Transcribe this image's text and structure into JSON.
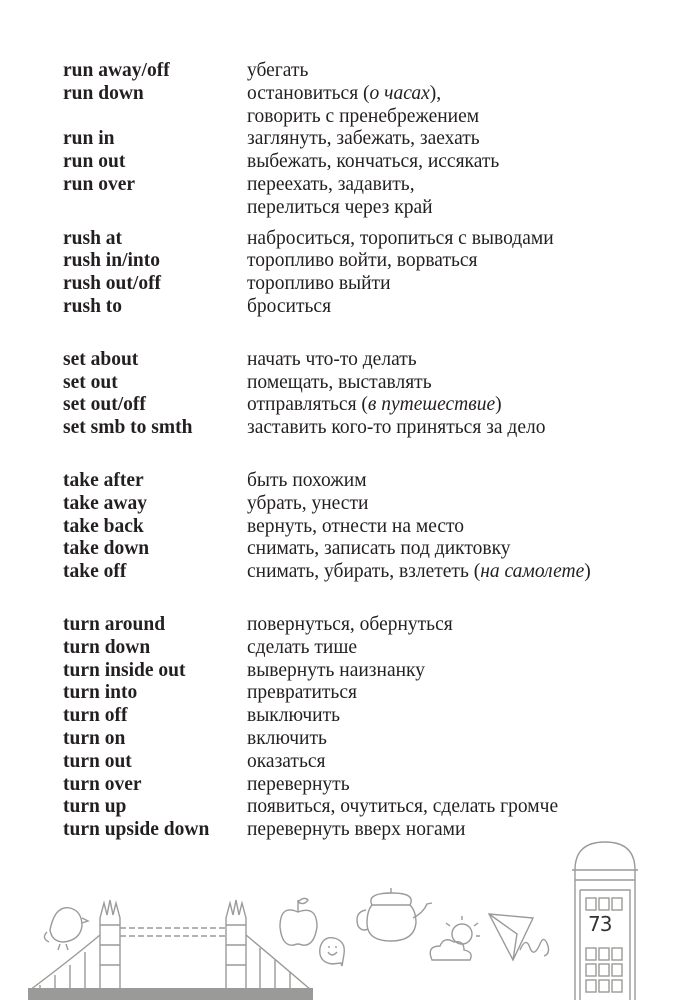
{
  "groups": [
    {
      "entries": [
        {
          "term": "run away/off",
          "lines": [
            [
              {
                "t": "убегать"
              }
            ]
          ]
        },
        {
          "term": "run down",
          "lines": [
            [
              {
                "t": "остановиться ("
              },
              {
                "t": "о часах",
                "i": true
              },
              {
                "t": "),"
              }
            ],
            [
              {
                "t": "говорить с пренебрежением"
              }
            ]
          ]
        },
        {
          "term": "run in",
          "lines": [
            [
              {
                "t": "заглянуть, забежать, заехать"
              }
            ]
          ]
        },
        {
          "term": "run out",
          "lines": [
            [
              {
                "t": "выбежать, кончаться, иссякать"
              }
            ]
          ]
        },
        {
          "term": "run over",
          "lines": [
            [
              {
                "t": "переехать, задавить,"
              }
            ],
            [
              {
                "t": "перелиться через край"
              }
            ]
          ]
        }
      ]
    },
    {
      "entries": [
        {
          "term": "rush at",
          "lines": [
            [
              {
                "t": "наброситься, торопиться с выводами"
              }
            ]
          ]
        },
        {
          "term": "rush in/into",
          "lines": [
            [
              {
                "t": "торопливо войти, ворваться"
              }
            ]
          ]
        },
        {
          "term": "rush out/off",
          "lines": [
            [
              {
                "t": "торопливо выйти"
              }
            ]
          ]
        },
        {
          "term": "rush to",
          "lines": [
            [
              {
                "t": "броситься"
              }
            ]
          ]
        }
      ]
    },
    {
      "entries": [
        {
          "term": "set about",
          "lines": [
            [
              {
                "t": "начать что-то делать"
              }
            ]
          ]
        },
        {
          "term": "set out",
          "lines": [
            [
              {
                "t": "помещать, выставлять"
              }
            ]
          ]
        },
        {
          "term": "set out/off",
          "lines": [
            [
              {
                "t": "отправляться ("
              },
              {
                "t": "в путешествие",
                "i": true
              },
              {
                "t": ")"
              }
            ]
          ]
        },
        {
          "term": "set smb to smth",
          "lines": [
            [
              {
                "t": "заставить кого-то приняться за дело"
              }
            ]
          ]
        }
      ]
    },
    {
      "entries": [
        {
          "term": "take after",
          "lines": [
            [
              {
                "t": "быть похожим"
              }
            ]
          ]
        },
        {
          "term": "take away",
          "lines": [
            [
              {
                "t": "убрать, унести"
              }
            ]
          ]
        },
        {
          "term": "take back",
          "lines": [
            [
              {
                "t": "вернуть, отнести на место"
              }
            ]
          ]
        },
        {
          "term": "take down",
          "lines": [
            [
              {
                "t": "снимать, записать под диктовку"
              }
            ]
          ]
        },
        {
          "term": "take off",
          "lines": [
            [
              {
                "t": "снимать, убирать, взлететь ("
              },
              {
                "t": "на самолете",
                "i": true
              },
              {
                "t": ")"
              }
            ]
          ]
        }
      ]
    },
    {
      "entries": [
        {
          "term": "turn around",
          "lines": [
            [
              {
                "t": "повернуться, обернуться"
              }
            ]
          ]
        },
        {
          "term": "turn down",
          "lines": [
            [
              {
                "t": "сделать тише"
              }
            ]
          ]
        },
        {
          "term": "turn inside out",
          "lines": [
            [
              {
                "t": "вывернуть наизнанку"
              }
            ]
          ]
        },
        {
          "term": "turn into",
          "lines": [
            [
              {
                "t": "превратиться"
              }
            ]
          ]
        },
        {
          "term": "turn off",
          "lines": [
            [
              {
                "t": "выключить"
              }
            ]
          ]
        },
        {
          "term": "turn on",
          "lines": [
            [
              {
                "t": "включить"
              }
            ]
          ]
        },
        {
          "term": "turn out",
          "lines": [
            [
              {
                "t": "оказаться"
              }
            ]
          ]
        },
        {
          "term": "turn over",
          "lines": [
            [
              {
                "t": "перевернуть"
              }
            ]
          ]
        },
        {
          "term": "turn up",
          "lines": [
            [
              {
                "t": "появиться, очутиться, сделать громче"
              }
            ]
          ]
        },
        {
          "term": "turn upside down",
          "lines": [
            [
              {
                "t": "перевернуть вверх ногами"
              }
            ]
          ]
        }
      ]
    }
  ],
  "page_number": "73",
  "illustration_icons": [
    "bird-icon",
    "tower-bridge-icon",
    "apple-icon",
    "smiley-bubble-icon",
    "teapot-icon",
    "sun-cloud-icon",
    "paper-plane-icon",
    "phone-booth-icon"
  ],
  "colors": {
    "text": "#231f20",
    "illustration": "#9a9a98"
  }
}
